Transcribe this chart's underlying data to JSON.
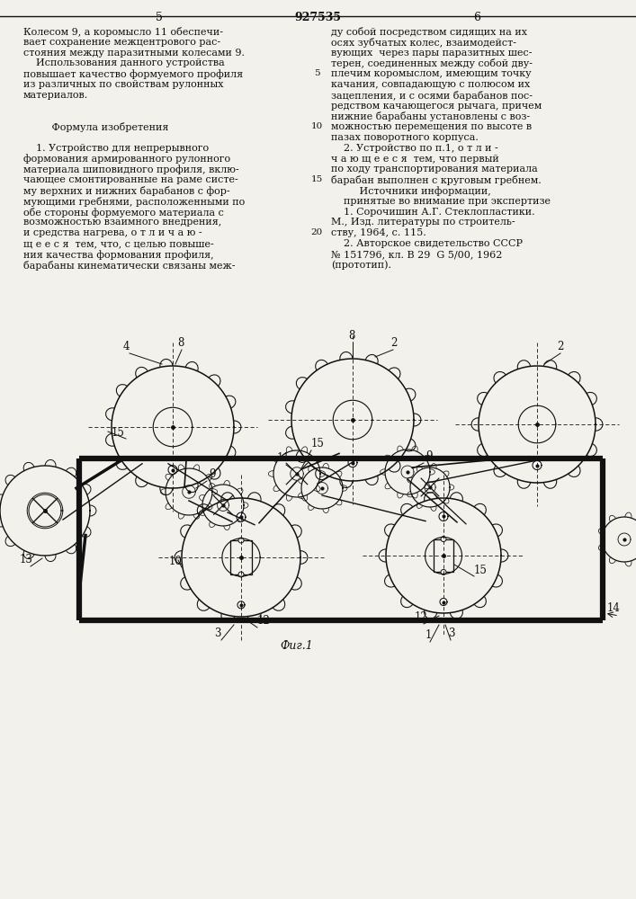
{
  "bg_color": "#f2f1ec",
  "text_color": "#111111",
  "line_color": "#111111",
  "left_lines": [
    "Колесом 9, а коромысло 11 обеспечи-",
    "вает сохранение межцентрового рас-",
    "стояния между паразитными колесами 9.",
    "    Использования данного устройства",
    "повышает качество формуемого профиля",
    "из различных по свойствам рулонных",
    "материалов.",
    "",
    "",
    "         Формула изобретения",
    "",
    "    1. Устройство для непрерывного",
    "формования армированного рулонного",
    "материала шиповидного профиля, вклю-",
    "чающее смонтированные на раме систе-",
    "му верхних и нижних барабанов с фор-",
    "мующими гребнями, расположенными по",
    "обе стороны формуемого материала с",
    "возможностью взаимного внедрения,",
    "и средства нагрева, о т л и ч а ю -",
    "щ е е с я  тем, что, с целью повыше-",
    "ния качества формования профиля,",
    "барабаны кинематически связаны меж-"
  ],
  "right_lines": [
    "ду собой посредством сидящих на их",
    "осях зубчатых колес, взаимодейст-",
    "вующих  через пары паразитных шес-",
    "терен, соединенных между собой дву-",
    "плечим коромыслом, имеющим точку",
    "качания, совпадающую с полюсом их",
    "зацепления, и с осями барабанов пос-",
    "редством качающегося рычага, причем",
    "нижние барабаны установлены с воз-",
    "можностью перемещения по высоте в",
    "пазах поворотного корпуса.",
    "    2. Устройство по п.1, о т л и -",
    "ч а ю щ е е с я  тем, что первый",
    "по ходу транспортирования материала",
    "барабан выполнен с круговым гребнем.",
    "         Источники информации,",
    "    принятые во внимание при экспертизе",
    "    1. Сорочишин А.Г. Стеклопластики.",
    "М., Изд. литературы по строитель-",
    "ству, 1964, с. 115.",
    "    2. Авторское свидетельство СССР",
    "№ 151796, кл. В 29  G 5/00, 1962",
    "(прототип)."
  ],
  "line_num_rows": [
    4,
    9,
    14,
    19
  ],
  "line_nums": [
    "5",
    "10",
    "15",
    "20"
  ]
}
